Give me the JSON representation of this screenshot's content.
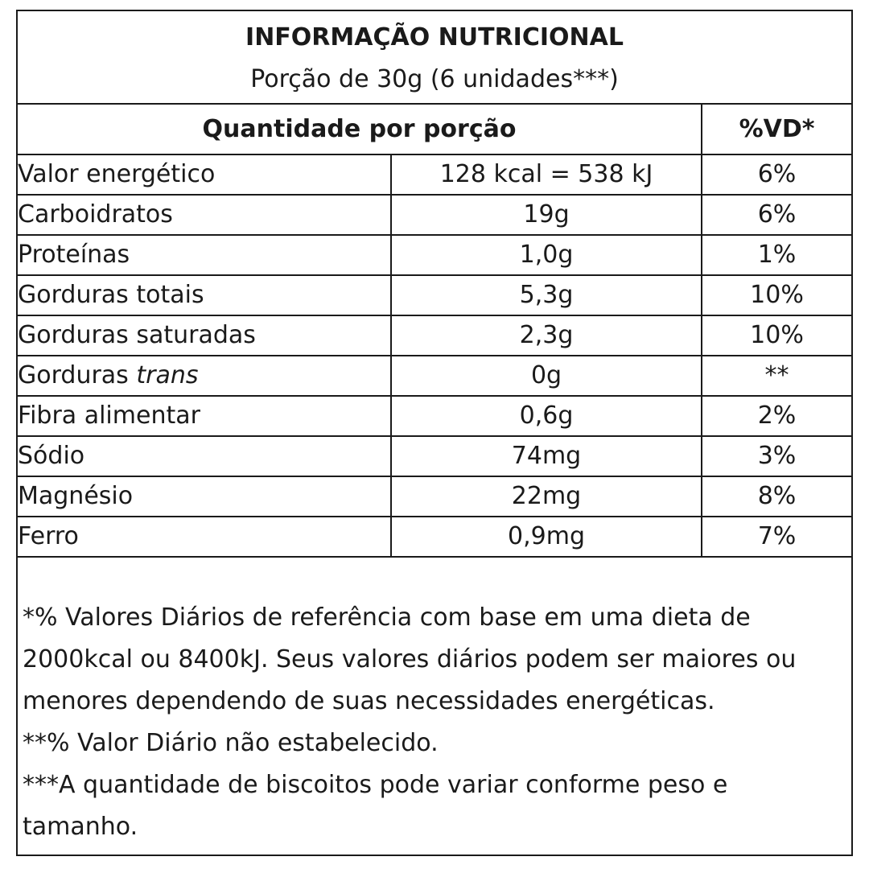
{
  "header": {
    "title": "INFORMAÇÃO NUTRICIONAL",
    "serving": "Porção de 30g (6 unidades***)"
  },
  "table": {
    "column_headers": {
      "quantity": "Quantidade por porção",
      "daily_value": "%VD*"
    },
    "rows": [
      {
        "name": "Valor energético",
        "name_italic": "",
        "quantity": "128 kcal = 538 kJ",
        "daily_value": "6%"
      },
      {
        "name": "Carboidratos",
        "name_italic": "",
        "quantity": "19g",
        "daily_value": "6%"
      },
      {
        "name": "Proteínas",
        "name_italic": "",
        "quantity": "1,0g",
        "daily_value": "1%"
      },
      {
        "name": "Gorduras totais",
        "name_italic": "",
        "quantity": "5,3g",
        "daily_value": "10%"
      },
      {
        "name": "Gorduras saturadas",
        "name_italic": "",
        "quantity": "2,3g",
        "daily_value": "10%"
      },
      {
        "name": "Gorduras ",
        "name_italic": "trans",
        "quantity": "0g",
        "daily_value": "**"
      },
      {
        "name": "Fibra alimentar",
        "name_italic": "",
        "quantity": "0,6g",
        "daily_value": "2%"
      },
      {
        "name": "Sódio",
        "name_italic": "",
        "quantity": "74mg",
        "daily_value": "3%"
      },
      {
        "name": "Magnésio",
        "name_italic": "",
        "quantity": "22mg",
        "daily_value": "8%"
      },
      {
        "name": "Ferro",
        "name_italic": "",
        "quantity": "0,9mg",
        "daily_value": "7%"
      }
    ]
  },
  "footnotes": [
    "*% Valores Diários de referência com base em uma dieta de 2000kcal ou 8400kJ. Seus valores diários podem ser maiores ou menores dependendo de suas necessidades energéticas.",
    "**% Valor Diário não estabelecido.",
    "***A quantidade de biscoitos pode variar conforme peso e tamanho."
  ]
}
